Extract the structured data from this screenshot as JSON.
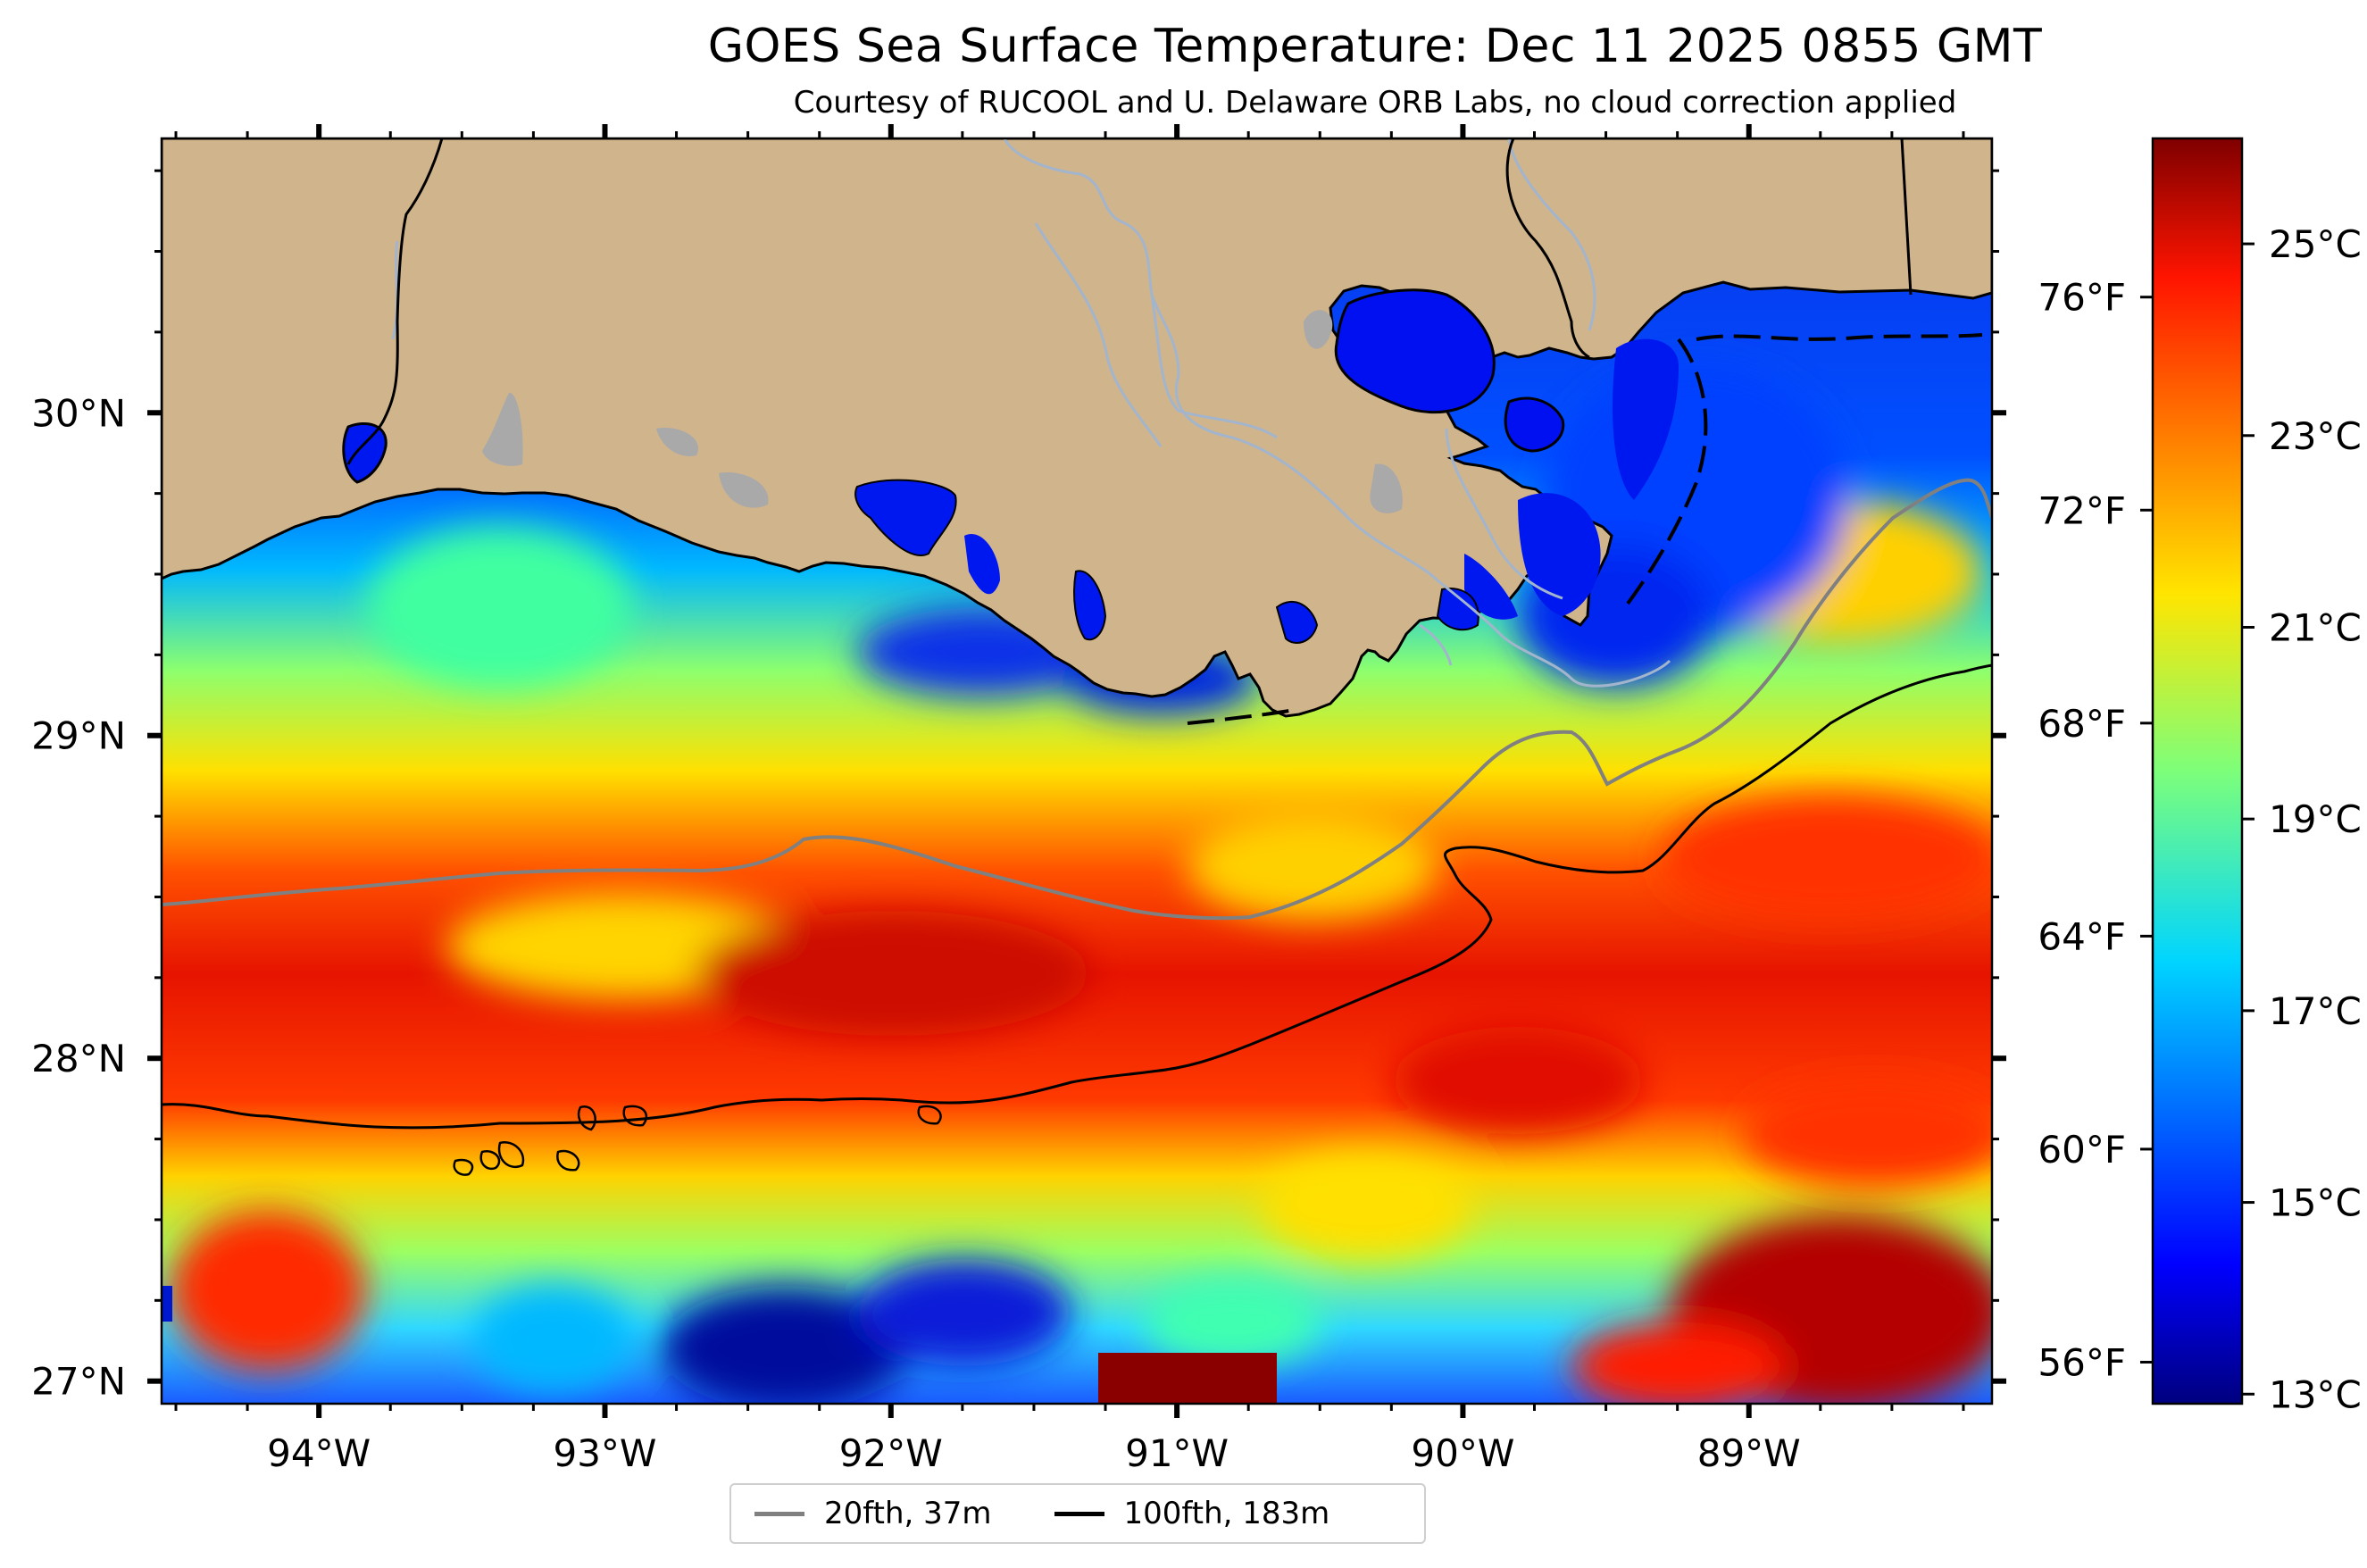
{
  "title": "GOES Sea Surface Temperature: Dec 11 2025 0855 GMT",
  "subtitle": "Courtesy of RUCOOL and U. Delaware ORB Labs, no cloud correction applied",
  "colors": {
    "land": "#d0b48c",
    "lakes": "#a9a9a9",
    "rivers": "#a2b5cd",
    "contour_20fth": "#808080",
    "contour_100fth": "#000000"
  },
  "map": {
    "lon_range": [
      -94.55,
      -88.15
    ],
    "lat_range": [
      26.93,
      30.85
    ],
    "lon_ticks": [
      {
        "value": -94,
        "label": "94°W"
      },
      {
        "value": -93,
        "label": "93°W"
      },
      {
        "value": -92,
        "label": "92°W"
      },
      {
        "value": -91,
        "label": "91°W"
      },
      {
        "value": -90,
        "label": "90°W"
      },
      {
        "value": -89,
        "label": "89°W"
      }
    ],
    "lat_ticks": [
      {
        "value": 30,
        "label": "30°N"
      },
      {
        "value": 29,
        "label": "29°N"
      },
      {
        "value": 28,
        "label": "28°N"
      },
      {
        "value": 27,
        "label": "27°N"
      }
    ]
  },
  "colorbar": {
    "range_c": [
      12.9,
      26.1
    ],
    "celsius_ticks": [
      {
        "value": 25,
        "label": "25°C"
      },
      {
        "value": 23,
        "label": "23°C"
      },
      {
        "value": 21,
        "label": "21°C"
      },
      {
        "value": 19,
        "label": "19°C"
      },
      {
        "value": 17,
        "label": "17°C"
      },
      {
        "value": 15,
        "label": "15°C"
      },
      {
        "value": 13,
        "label": "13°C"
      }
    ],
    "fahrenheit_ticks": [
      {
        "value": 76,
        "label": "76°F"
      },
      {
        "value": 72,
        "label": "72°F"
      },
      {
        "value": 68,
        "label": "68°F"
      },
      {
        "value": 64,
        "label": "64°F"
      },
      {
        "value": 60,
        "label": "60°F"
      },
      {
        "value": 56,
        "label": "56°F"
      }
    ]
  },
  "legend": {
    "items": [
      {
        "label": "20fth, 37m"
      },
      {
        "label": "100fth, 183m"
      }
    ]
  }
}
